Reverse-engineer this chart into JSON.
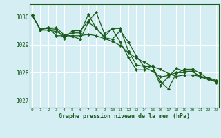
{
  "bg_color": "#d4eef4",
  "grid_color": "#aad4dd",
  "line_color": "#1a5c1a",
  "marker_color": "#1a5c1a",
  "xlabel": "Graphe pression niveau de la mer (hPa)",
  "ylim": [
    1026.75,
    1030.45
  ],
  "yticks": [
    1027,
    1028,
    1029,
    1030
  ],
  "xlim": [
    -0.3,
    23.3
  ],
  "xticks": [
    0,
    1,
    2,
    3,
    4,
    5,
    6,
    7,
    8,
    9,
    10,
    11,
    12,
    13,
    14,
    15,
    16,
    17,
    18,
    19,
    20,
    21,
    22,
    23
  ],
  "series": [
    [
      1030.05,
      1029.55,
      1029.6,
      1029.6,
      1029.35,
      1029.3,
      1029.2,
      1029.8,
      1029.6,
      1029.25,
      1029.2,
      1029.5,
      1029.1,
      1028.6,
      1028.2,
      1028.05,
      1027.85,
      1027.9,
      1028.0,
      1028.0,
      1028.05,
      1027.85,
      1027.75,
      1027.7
    ],
    [
      1030.05,
      1029.55,
      1029.58,
      1029.55,
      1029.22,
      1029.5,
      1029.5,
      1029.85,
      1030.15,
      1029.4,
      1029.55,
      1029.1,
      1028.55,
      1028.1,
      1028.1,
      1028.25,
      1027.55,
      1027.85,
      1028.15,
      1028.05,
      1028.05,
      1027.85,
      1027.8,
      1027.65
    ],
    [
      1030.05,
      1029.55,
      1029.62,
      1029.32,
      1029.32,
      1029.42,
      1029.42,
      1030.08,
      1029.58,
      1029.28,
      1029.58,
      1029.58,
      1028.78,
      1028.28,
      1028.22,
      1028.22,
      1027.68,
      1027.42,
      1027.98,
      1028.12,
      1028.12,
      1027.98,
      1027.78,
      1027.68
    ],
    [
      1030.05,
      1029.52,
      1029.52,
      1029.47,
      1029.32,
      1029.32,
      1029.32,
      1029.37,
      1029.32,
      1029.22,
      1029.12,
      1028.97,
      1028.72,
      1028.52,
      1028.37,
      1028.22,
      1028.12,
      1027.97,
      1027.87,
      1027.92,
      1027.92,
      1027.87,
      1027.82,
      1027.72
    ]
  ]
}
